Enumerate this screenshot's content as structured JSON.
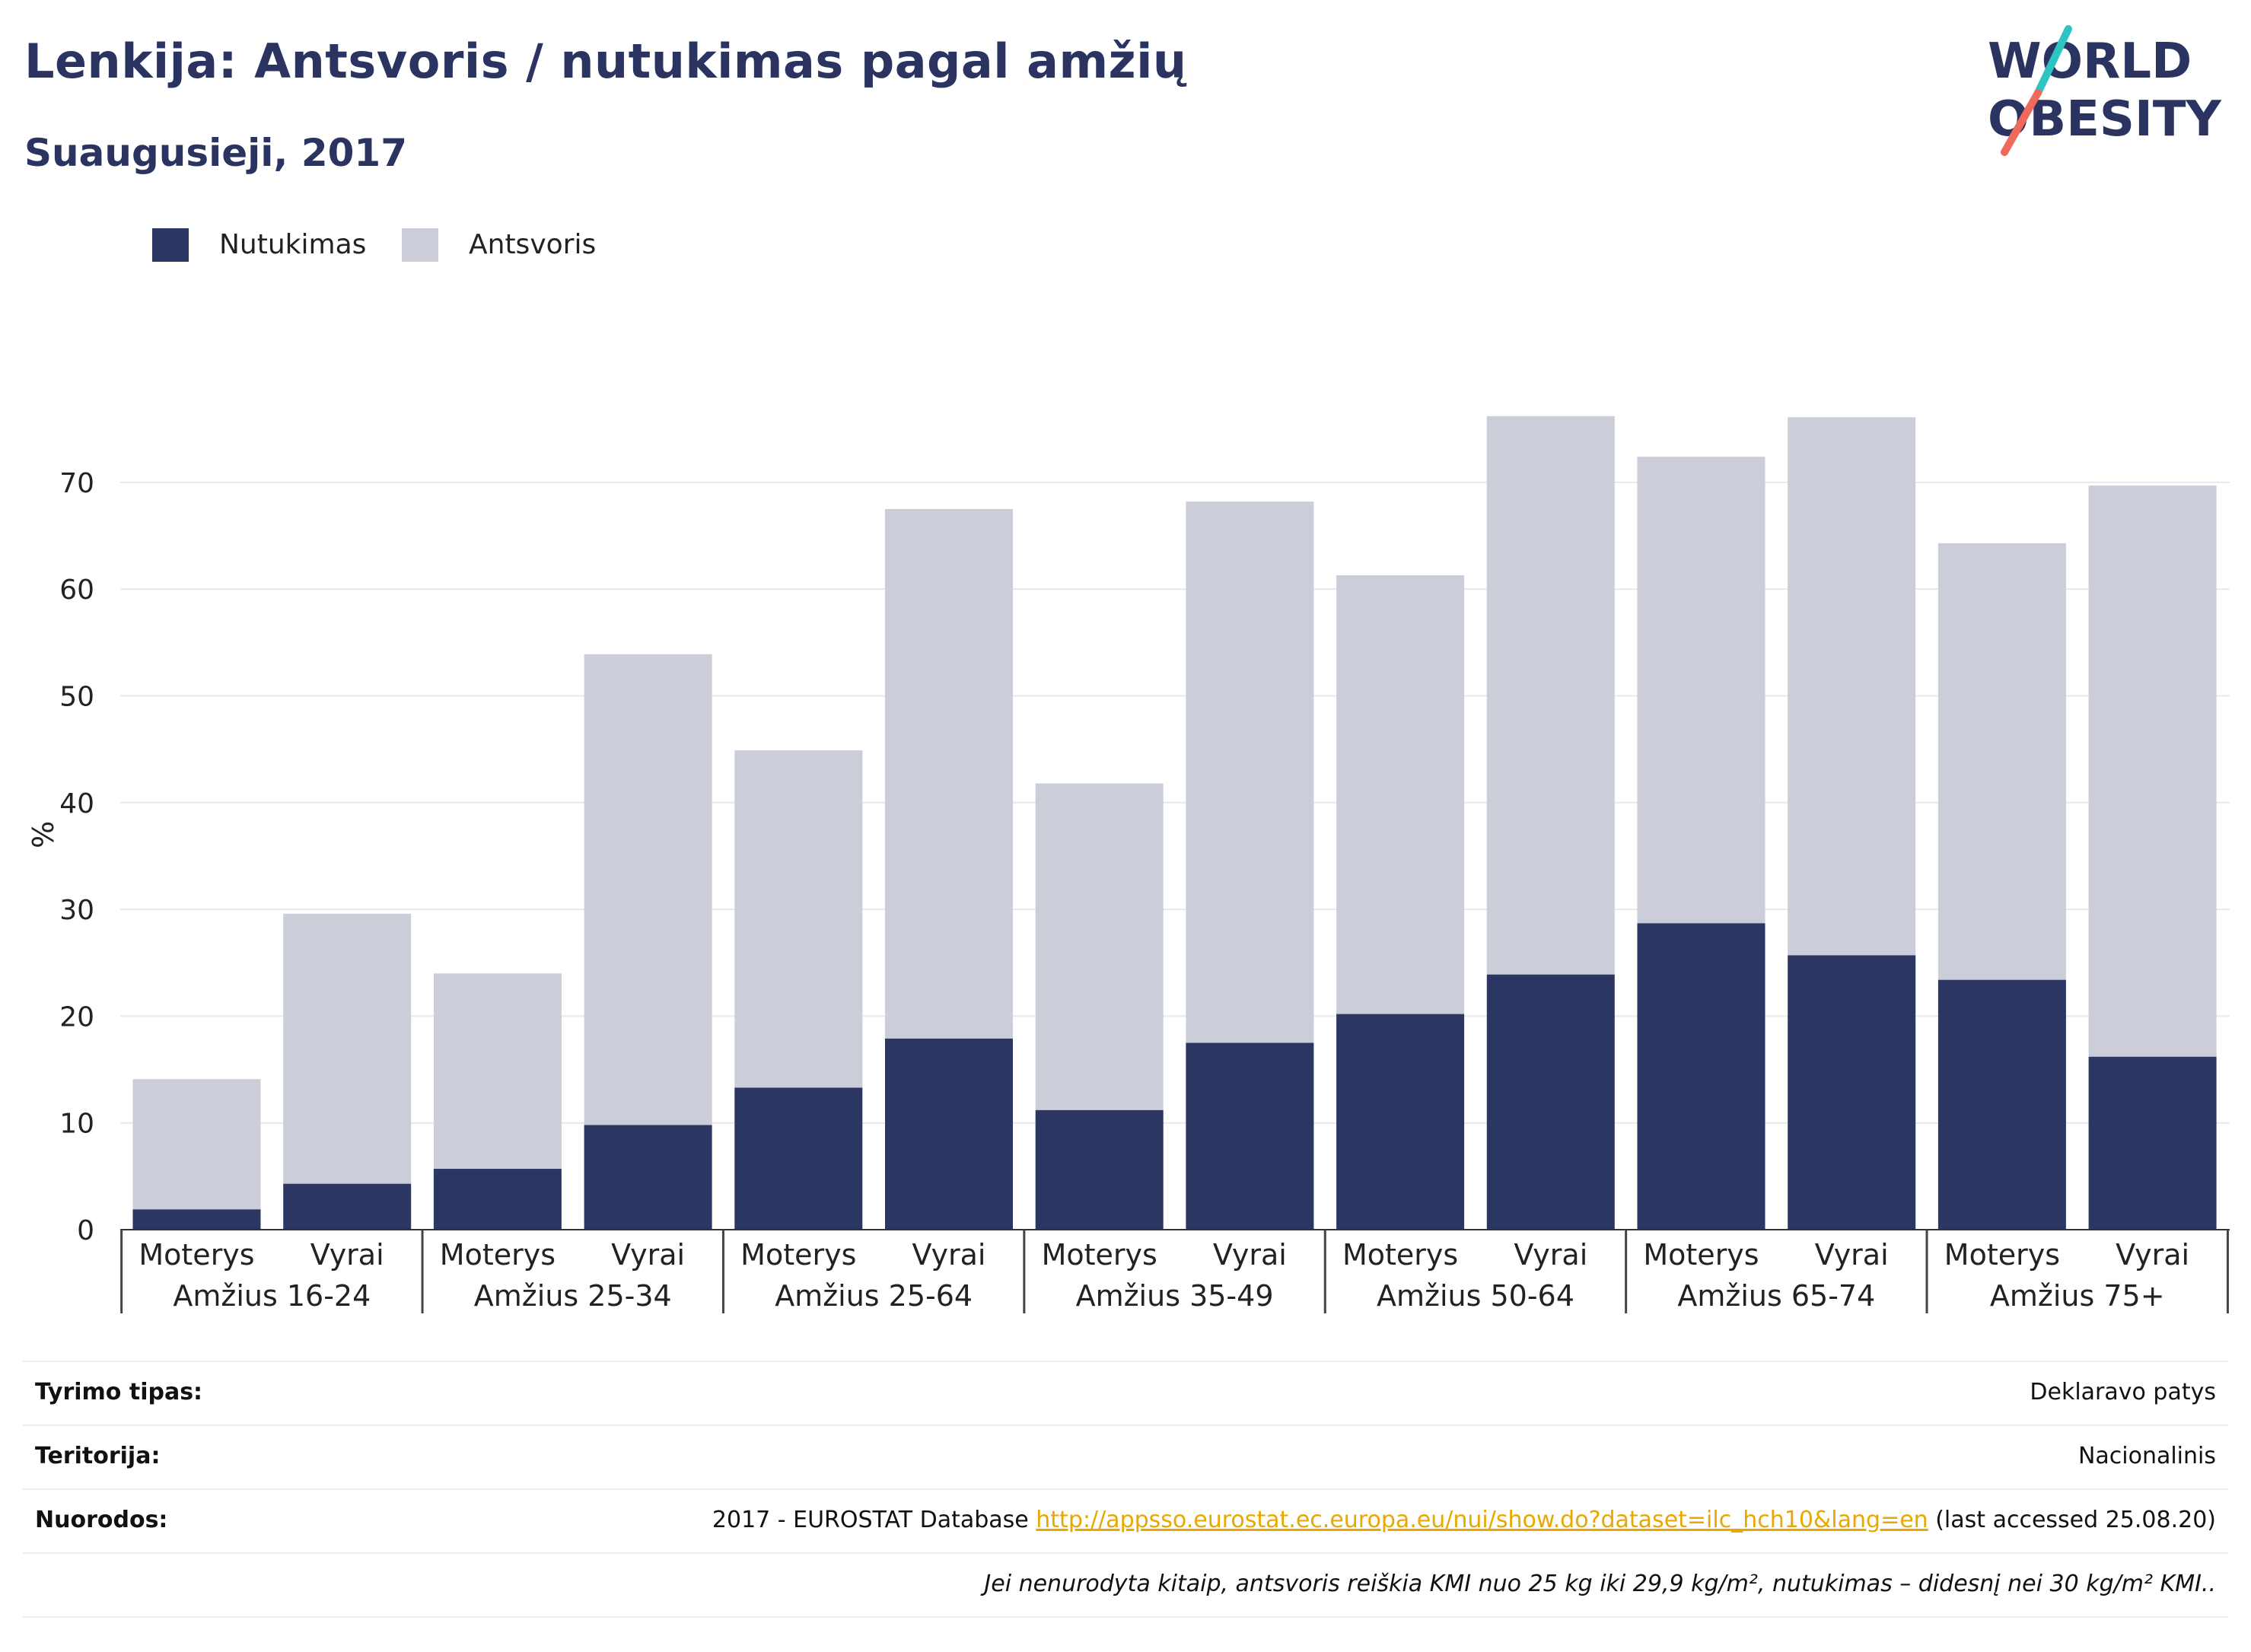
{
  "header": {
    "title": "Lenkija: Antsvoris / nutukimas pagal amžių",
    "subtitle": "Suaugusieji, 2017",
    "logo_line1": "WORLD",
    "logo_line2": "OBESITY"
  },
  "colors": {
    "obesity": "#2b3663",
    "overweight": "#cbcdd9",
    "title": "#2b3461",
    "link": "#e8a800",
    "logo_teal": "#2ec4c4",
    "logo_coral": "#ef6a5a"
  },
  "chart_data": {
    "type": "bar",
    "stacked": true,
    "ylabel": "%",
    "ylim": [
      0,
      80
    ],
    "yticks": [
      0,
      10,
      20,
      30,
      40,
      50,
      60,
      70
    ],
    "grid": true,
    "legend_position": "top-left",
    "groups": [
      "Amžius 16-24",
      "Amžius 25-34",
      "Amžius 25-64",
      "Amžius 35-49",
      "Amžius 50-64",
      "Amžius 65-74",
      "Amžius 75+"
    ],
    "subcategories": [
      "Moterys",
      "Vyrai"
    ],
    "series": [
      {
        "name": "Nutukimas",
        "values": [
          1.9,
          4.3,
          5.7,
          9.8,
          13.3,
          17.9,
          11.2,
          17.5,
          20.2,
          23.9,
          28.7,
          25.7,
          23.4,
          16.2
        ]
      },
      {
        "name": "Antsvoris",
        "values": [
          12.2,
          25.3,
          18.3,
          44.1,
          31.6,
          49.6,
          30.6,
          50.7,
          41.1,
          52.3,
          43.7,
          50.4,
          40.9,
          53.5
        ]
      }
    ]
  },
  "info": {
    "rows": [
      {
        "label": "Tyrimo tipas:",
        "value": "Deklaravo patys"
      },
      {
        "label": "Teritorija:",
        "value": "Nacionalinis"
      }
    ],
    "source_label": "Nuorodos:",
    "source_prefix": "2017 - EUROSTAT Database ",
    "source_link": "http://appsso.eurostat.ec.europa.eu/nui/show.do?dataset=ilc_hch10&lang=en",
    "source_suffix": " (last accessed 25.08.20)",
    "note": "Jei nenurodyta kitaip, antsvoris reiškia KMI nuo 25 kg iki 29,9 kg/m², nutukimas – didesnį nei 30 kg/m² KMI.."
  }
}
